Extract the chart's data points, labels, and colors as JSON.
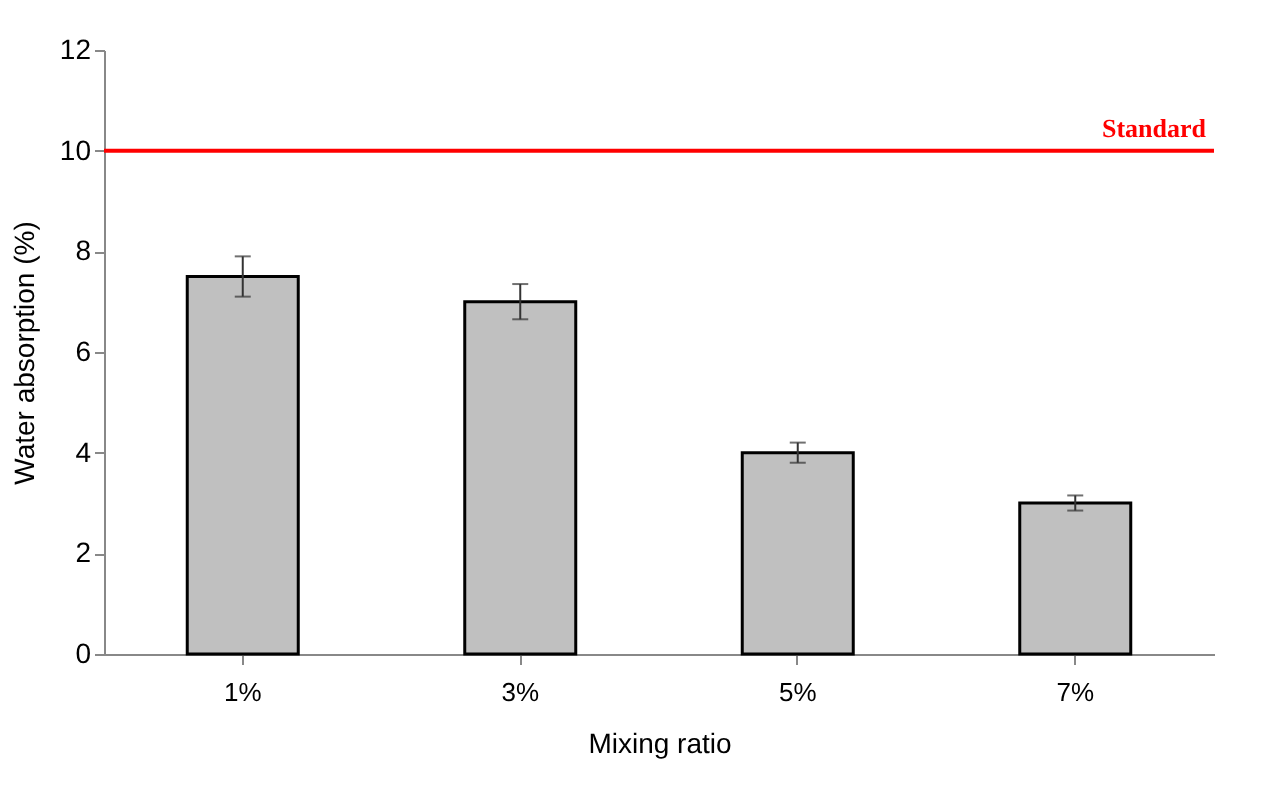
{
  "chart_data": {
    "type": "bar",
    "xlabel": "Mixing ratio",
    "ylabel": "Water absorption (%)",
    "categories": [
      "1%",
      "3%",
      "5%",
      "7%"
    ],
    "values": [
      7.5,
      7.0,
      4.0,
      3.0
    ],
    "errors": [
      0.4,
      0.35,
      0.2,
      0.15
    ],
    "color": "#c0c0c0",
    "ylim": [
      0,
      12
    ],
    "yticks": [
      0,
      2,
      4,
      6,
      8,
      10,
      12
    ],
    "ref_lines": [
      {
        "axis": "y",
        "value": 10,
        "label": "Standard",
        "color": "#ff0000"
      }
    ]
  }
}
